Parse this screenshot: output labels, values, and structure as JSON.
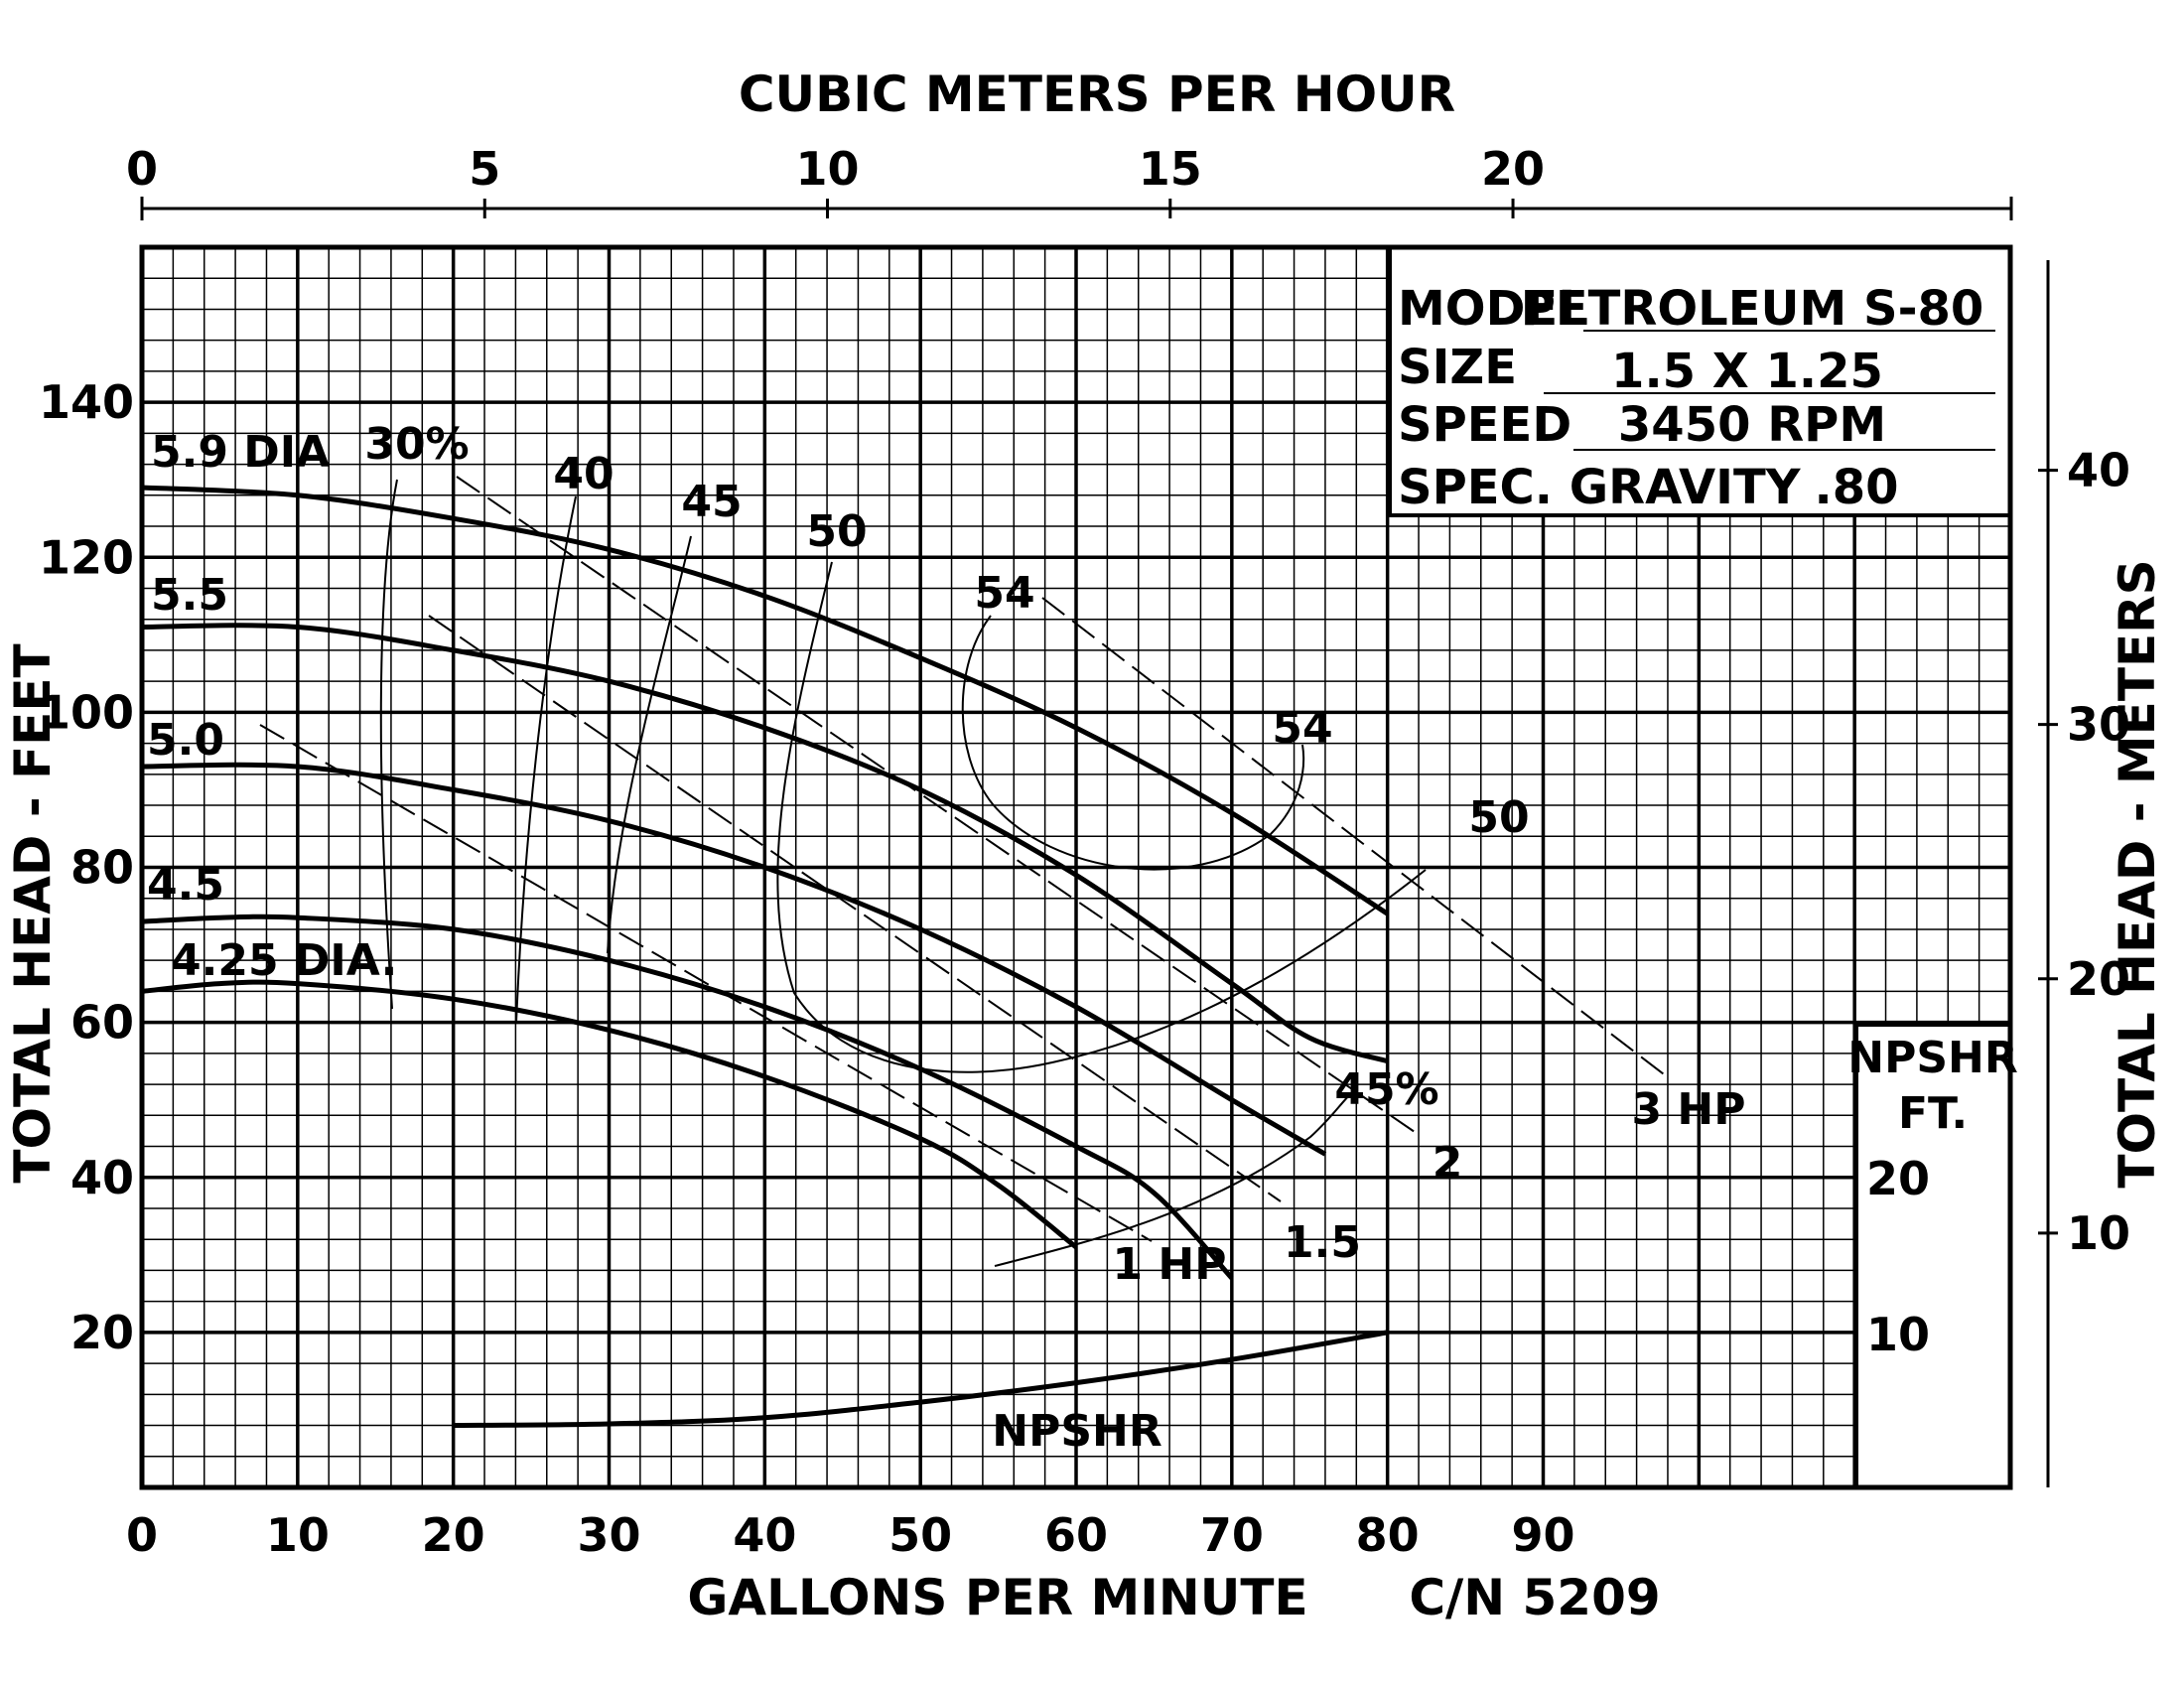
{
  "chart_data": {
    "type": "line",
    "title": "",
    "info_box": {
      "model_label": "MODEL",
      "model_value": "PETROLEUM S-80",
      "size_label": "SIZE",
      "size_value": "1.5 X 1.25",
      "speed_label": "SPEED",
      "speed_value": "3450 RPM",
      "gravity_label": "SPEC. GRAVITY",
      "gravity_value": ".80"
    },
    "xlabel": "GALLONS PER MINUTE",
    "x_top_label": "CUBIC METERS PER HOUR",
    "ylabel": "TOTAL HEAD - FEET",
    "y_right_label": "TOTAL HEAD - METERS",
    "npshr_axis_label_1": "NPSHR",
    "npshr_axis_label_2": "FT.",
    "code": "C/N 5209",
    "xlim": [
      0,
      120
    ],
    "ylim": [
      0,
      160
    ],
    "x_ticks": [
      "0",
      "10",
      "20",
      "30",
      "40",
      "50",
      "60",
      "70",
      "80",
      "90"
    ],
    "y_ticks": [
      "20",
      "40",
      "60",
      "80",
      "100",
      "120",
      "140"
    ],
    "x_top_ticks": [
      "0",
      "5",
      "10",
      "15",
      "20"
    ],
    "y_right_ticks": [
      "10",
      "20",
      "30",
      "40"
    ],
    "npshr_ticks": [
      "10",
      "20"
    ],
    "series": [
      {
        "name": "5.9 DIA",
        "label": "5.9 DIA",
        "x": [
          0,
          10,
          20,
          30,
          40,
          50,
          60,
          70,
          80
        ],
        "y": [
          129,
          128,
          125,
          121,
          115,
          107,
          98,
          87,
          74
        ]
      },
      {
        "name": "5.5",
        "label": "5.5",
        "x": [
          0,
          10,
          20,
          30,
          40,
          50,
          60,
          70,
          75,
          80
        ],
        "y": [
          111,
          111,
          108,
          104,
          98,
          90,
          79,
          65,
          58,
          55
        ]
      },
      {
        "name": "5.0",
        "label": "5.0",
        "x": [
          0,
          10,
          20,
          30,
          40,
          50,
          60,
          70,
          76
        ],
        "y": [
          93,
          93,
          90,
          86,
          80,
          72,
          62,
          50,
          43
        ]
      },
      {
        "name": "4.5",
        "label": "4.5",
        "x": [
          0,
          5,
          10,
          20,
          30,
          40,
          50,
          60,
          65,
          70
        ],
        "y": [
          73,
          73.5,
          73.5,
          72,
          68,
          62,
          54,
          44,
          38,
          27
        ]
      },
      {
        "name": "4.25 DIA.",
        "label": "4.25 DIA.",
        "x": [
          0,
          5,
          10,
          20,
          30,
          40,
          50,
          55,
          60
        ],
        "y": [
          64,
          65,
          65,
          63,
          59,
          53,
          45,
          39,
          31
        ]
      }
    ],
    "efficiency_labels": [
      "30%",
      "40",
      "45",
      "50",
      "54",
      "54",
      "50",
      "45%"
    ],
    "horsepower_labels": [
      "1 HP",
      "1.5",
      "2",
      "3 HP"
    ],
    "npshr_curve": {
      "name": "NPSHR",
      "label": "NPSHR",
      "x": [
        20,
        30,
        40,
        50,
        60,
        70,
        80
      ],
      "y": [
        8,
        8.2,
        9,
        11,
        13.5,
        16.5,
        20
      ]
    }
  }
}
